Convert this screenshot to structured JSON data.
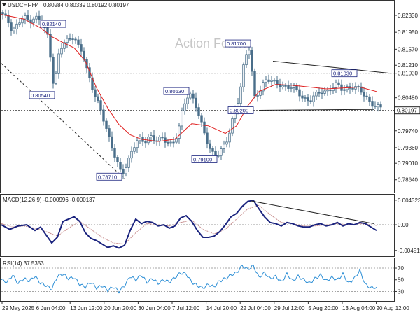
{
  "header": {
    "symbol": "USDCHF,H4",
    "ohlc": "0.80284 0.80339 0.80192 0.80197"
  },
  "watermark": "Action Forex",
  "colors": {
    "candle": "#4a6f8a",
    "ma": "#e02020",
    "macd_line": "#1a237e",
    "macd_signal": "#c89090",
    "rsi": "#2d8fd6",
    "annotation": "#1a237e",
    "price_tag_bg": "#ffffff"
  },
  "chart_data": [
    {
      "type": "candlestick",
      "name": "price",
      "ylim": [
        0.784,
        0.8255
      ],
      "y_ticks": [
        "0.82330",
        "0.81950",
        "0.81570",
        "0.81210",
        "0.81030",
        "0.80480",
        "0.80197",
        "0.79740",
        "0.79360",
        "0.79010",
        "0.78640"
      ],
      "current_price": "0.80197",
      "x_tick_labels": [
        "29 May 2025",
        "6 Jun 04:00",
        "13 Jun 12:00",
        "20 Jun 20:00",
        "30 Jun 04:00",
        "7 Jul 12:00",
        "14 Jul 20:00",
        "22 Jul 04:00",
        "29 Jul 12:00",
        "5 Aug 20:00",
        "13 Aug 04:00",
        "20 Aug 12:00"
      ],
      "close_points": [
        [
          0,
          0.824
        ],
        [
          2,
          0.8225
        ],
        [
          4,
          0.8195
        ],
        [
          6,
          0.8215
        ],
        [
          8,
          0.8232
        ],
        [
          10,
          0.8218
        ],
        [
          12,
          0.8228
        ],
        [
          14,
          0.8222
        ],
        [
          15,
          0.8212
        ],
        [
          17,
          0.8178
        ],
        [
          18,
          0.8105
        ],
        [
          19,
          0.8062
        ],
        [
          20,
          0.8135
        ],
        [
          22,
          0.8172
        ],
        [
          24,
          0.8178
        ],
        [
          26,
          0.8186
        ],
        [
          27,
          0.8168
        ],
        [
          29,
          0.815
        ],
        [
          31,
          0.81
        ],
        [
          33,
          0.806
        ],
        [
          35,
          0.803
        ],
        [
          37,
          0.799
        ],
        [
          39,
          0.7945
        ],
        [
          41,
          0.791
        ],
        [
          43,
          0.7875
        ],
        [
          45,
          0.79
        ],
        [
          47,
          0.7935
        ],
        [
          49,
          0.7958
        ],
        [
          51,
          0.7948
        ],
        [
          53,
          0.7962
        ],
        [
          55,
          0.7952
        ],
        [
          57,
          0.7958
        ],
        [
          59,
          0.795
        ],
        [
          61,
          0.7942
        ],
        [
          63,
          0.7968
        ],
        [
          65,
          0.803
        ],
        [
          67,
          0.8058
        ],
        [
          69,
          0.804
        ],
        [
          71,
          0.8
        ],
        [
          73,
          0.7958
        ],
        [
          75,
          0.7925
        ],
        [
          77,
          0.7918
        ],
        [
          79,
          0.7935
        ],
        [
          81,
          0.7958
        ],
        [
          83,
          0.801
        ],
        [
          85,
          0.805
        ],
        [
          87,
          0.814
        ],
        [
          89,
          0.8165
        ],
        [
          90,
          0.8045
        ],
        [
          92,
          0.806
        ],
        [
          94,
          0.8085
        ],
        [
          96,
          0.809
        ],
        [
          98,
          0.808
        ],
        [
          100,
          0.8075
        ],
        [
          102,
          0.807
        ],
        [
          104,
          0.8075
        ],
        [
          106,
          0.806
        ],
        [
          108,
          0.8045
        ],
        [
          110,
          0.804
        ],
        [
          112,
          0.8055
        ],
        [
          114,
          0.8062
        ],
        [
          116,
          0.806
        ],
        [
          118,
          0.807
        ],
        [
          120,
          0.808
        ],
        [
          122,
          0.8065
        ],
        [
          124,
          0.807
        ],
        [
          126,
          0.8072
        ],
        [
          128,
          0.8068
        ],
        [
          130,
          0.805
        ],
        [
          132,
          0.8035
        ],
        [
          134,
          0.8028
        ]
      ],
      "ma_points": [
        [
          0,
          0.8235
        ],
        [
          8,
          0.8225
        ],
        [
          14,
          0.8205
        ],
        [
          18,
          0.8185
        ],
        [
          22,
          0.8172
        ],
        [
          26,
          0.816
        ],
        [
          30,
          0.813
        ],
        [
          34,
          0.807
        ],
        [
          38,
          0.8025
        ],
        [
          42,
          0.7988
        ],
        [
          46,
          0.7965
        ],
        [
          50,
          0.7955
        ],
        [
          56,
          0.795
        ],
        [
          62,
          0.7955
        ],
        [
          68,
          0.799
        ],
        [
          74,
          0.7985
        ],
        [
          80,
          0.7968
        ],
        [
          84,
          0.7985
        ],
        [
          88,
          0.803
        ],
        [
          92,
          0.8062
        ],
        [
          98,
          0.8078
        ],
        [
          104,
          0.8076
        ],
        [
          110,
          0.8072
        ],
        [
          116,
          0.8068
        ],
        [
          122,
          0.807
        ],
        [
          128,
          0.8072
        ],
        [
          134,
          0.8062
        ]
      ],
      "annotations": [
        {
          "label": "0.82140",
          "x": 23,
          "price": 0.8214,
          "side": "left"
        },
        {
          "label": "0.80540",
          "x": 19,
          "price": 0.8054,
          "side": "left"
        },
        {
          "label": "0.78710",
          "x": 43,
          "price": 0.7871,
          "side": "left"
        },
        {
          "label": "0.80630",
          "x": 67,
          "price": 0.8063,
          "side": "left"
        },
        {
          "label": "0.79100",
          "x": 77,
          "price": 0.791,
          "side": "left"
        },
        {
          "label": "0.81700",
          "x": 89,
          "price": 0.817,
          "side": "left"
        },
        {
          "label": "0.80200",
          "x": 90,
          "price": 0.802,
          "side": "left"
        },
        {
          "label": "0.81030",
          "x": 118,
          "price": 0.8103,
          "side": "right"
        }
      ],
      "trendlines": [
        {
          "from": [
            0,
            0.8125
          ],
          "to": [
            44,
            0.7866
          ],
          "style": "dashed"
        },
        {
          "from": [
            97,
            0.813
          ],
          "to": [
            139,
            0.8103
          ],
          "style": "solid"
        },
        {
          "from": [
            92,
            0.802
          ],
          "to": [
            133,
            0.8022
          ],
          "style": "solid"
        }
      ],
      "levels": [
        {
          "price": 0.8103,
          "style": "dotted"
        },
        {
          "price": 0.80197,
          "style": "dotted"
        }
      ]
    },
    {
      "type": "line",
      "name": "macd",
      "label": "MACD(12,26,9) -0.000996 -0.000137",
      "ylim": [
        -0.0054,
        0.0048
      ],
      "y_ticks": [
        "0.004323",
        "0.00",
        "-0.004511"
      ],
      "macd_points": [
        [
          0,
          0.0
        ],
        [
          3,
          -0.0008
        ],
        [
          6,
          -0.0002
        ],
        [
          9,
          0.0
        ],
        [
          12,
          -0.001
        ],
        [
          14,
          -0.0004
        ],
        [
          16,
          -0.0018
        ],
        [
          18,
          -0.0032
        ],
        [
          20,
          -0.0022
        ],
        [
          22,
          0.0006
        ],
        [
          24,
          0.001
        ],
        [
          26,
          0.0014
        ],
        [
          28,
          0.0006
        ],
        [
          30,
          -0.0014
        ],
        [
          32,
          -0.0024
        ],
        [
          34,
          -0.0028
        ],
        [
          36,
          -0.0034
        ],
        [
          38,
          -0.004
        ],
        [
          40,
          -0.0037
        ],
        [
          42,
          -0.0041
        ],
        [
          44,
          -0.0036
        ],
        [
          46,
          -0.001
        ],
        [
          48,
          0.001
        ],
        [
          50,
          0.0002
        ],
        [
          52,
          0.0006
        ],
        [
          54,
          0.0004
        ],
        [
          56,
          -0.0002
        ],
        [
          58,
          0.0
        ],
        [
          60,
          -0.0006
        ],
        [
          62,
          -0.0002
        ],
        [
          64,
          0.0012
        ],
        [
          66,
          0.0016
        ],
        [
          68,
          0.0006
        ],
        [
          70,
          -0.001
        ],
        [
          72,
          -0.0022
        ],
        [
          74,
          -0.0022
        ],
        [
          76,
          -0.002
        ],
        [
          78,
          -0.0012
        ],
        [
          80,
          0.0
        ],
        [
          82,
          0.0014
        ],
        [
          84,
          0.002
        ],
        [
          86,
          0.0032
        ],
        [
          88,
          0.0041
        ],
        [
          90,
          0.0043
        ],
        [
          92,
          0.0028
        ],
        [
          94,
          0.0014
        ],
        [
          96,
          0.0004
        ],
        [
          98,
          0.0002
        ],
        [
          100,
          -0.0002
        ],
        [
          102,
          0.0004
        ],
        [
          104,
          0.0002
        ],
        [
          106,
          -0.0002
        ],
        [
          108,
          -0.0004
        ],
        [
          110,
          -0.0004
        ],
        [
          112,
          0.0
        ],
        [
          114,
          0.0002
        ],
        [
          116,
          -0.0002
        ],
        [
          118,
          0.0
        ],
        [
          120,
          0.0004
        ],
        [
          122,
          -0.0002
        ],
        [
          124,
          0.0002
        ],
        [
          126,
          0.0
        ],
        [
          128,
          0.0004
        ],
        [
          130,
          0.0002
        ],
        [
          132,
          -0.0004
        ],
        [
          134,
          -0.001
        ]
      ],
      "signal_points": [
        [
          0,
          0.0002
        ],
        [
          4,
          -0.0004
        ],
        [
          8,
          -0.0002
        ],
        [
          12,
          -0.0006
        ],
        [
          16,
          -0.0012
        ],
        [
          20,
          -0.002
        ],
        [
          24,
          -0.0006
        ],
        [
          28,
          0.0006
        ],
        [
          32,
          -0.0008
        ],
        [
          36,
          -0.0022
        ],
        [
          40,
          -0.0032
        ],
        [
          44,
          -0.0034
        ],
        [
          48,
          -0.0014
        ],
        [
          52,
          0.0002
        ],
        [
          56,
          0.0
        ],
        [
          60,
          -0.0002
        ],
        [
          64,
          0.0004
        ],
        [
          68,
          0.0008
        ],
        [
          72,
          -0.0008
        ],
        [
          76,
          -0.0016
        ],
        [
          80,
          -0.0008
        ],
        [
          84,
          0.001
        ],
        [
          88,
          0.0028
        ],
        [
          92,
          0.0034
        ],
        [
          96,
          0.0018
        ],
        [
          100,
          0.0004
        ],
        [
          104,
          0.0002
        ],
        [
          108,
          -0.0002
        ],
        [
          112,
          -0.0002
        ],
        [
          116,
          0.0
        ],
        [
          120,
          0.0002
        ],
        [
          124,
          0.0
        ],
        [
          128,
          0.0002
        ],
        [
          132,
          0.0
        ],
        [
          134,
          -0.0001
        ]
      ],
      "trendline": {
        "from": [
          89,
          0.0042
        ],
        "to": [
          133,
          0.0002
        ]
      }
    },
    {
      "type": "line",
      "name": "rsi",
      "label": "RSI(14) 37.5353",
      "ylim": [
        15,
        82
      ],
      "y_ticks": [
        "70",
        "50",
        "30"
      ],
      "reference_levels": [
        70,
        30
      ],
      "rsi_points": [
        [
          0,
          50
        ],
        [
          2,
          46
        ],
        [
          4,
          58
        ],
        [
          6,
          44
        ],
        [
          8,
          52
        ],
        [
          10,
          48
        ],
        [
          12,
          56
        ],
        [
          14,
          44
        ],
        [
          16,
          40
        ],
        [
          18,
          34
        ],
        [
          20,
          56
        ],
        [
          22,
          60
        ],
        [
          24,
          52
        ],
        [
          26,
          54
        ],
        [
          28,
          42
        ],
        [
          30,
          38
        ],
        [
          32,
          46
        ],
        [
          34,
          36
        ],
        [
          36,
          40
        ],
        [
          38,
          32
        ],
        [
          40,
          38
        ],
        [
          42,
          30
        ],
        [
          44,
          40
        ],
        [
          46,
          56
        ],
        [
          48,
          50
        ],
        [
          50,
          58
        ],
        [
          52,
          46
        ],
        [
          54,
          52
        ],
        [
          56,
          44
        ],
        [
          58,
          50
        ],
        [
          60,
          46
        ],
        [
          62,
          54
        ],
        [
          64,
          62
        ],
        [
          66,
          60
        ],
        [
          68,
          46
        ],
        [
          70,
          40
        ],
        [
          72,
          36
        ],
        [
          74,
          42
        ],
        [
          76,
          38
        ],
        [
          78,
          48
        ],
        [
          80,
          52
        ],
        [
          82,
          58
        ],
        [
          84,
          62
        ],
        [
          86,
          74
        ],
        [
          88,
          68
        ],
        [
          90,
          74
        ],
        [
          92,
          54
        ],
        [
          94,
          62
        ],
        [
          96,
          52
        ],
        [
          98,
          56
        ],
        [
          100,
          46
        ],
        [
          102,
          60
        ],
        [
          104,
          48
        ],
        [
          106,
          56
        ],
        [
          108,
          50
        ],
        [
          110,
          44
        ],
        [
          112,
          52
        ],
        [
          114,
          58
        ],
        [
          116,
          48
        ],
        [
          118,
          54
        ],
        [
          120,
          50
        ],
        [
          122,
          60
        ],
        [
          124,
          44
        ],
        [
          126,
          52
        ],
        [
          128,
          66
        ],
        [
          130,
          42
        ],
        [
          132,
          36
        ],
        [
          134,
          37.5
        ]
      ]
    }
  ]
}
